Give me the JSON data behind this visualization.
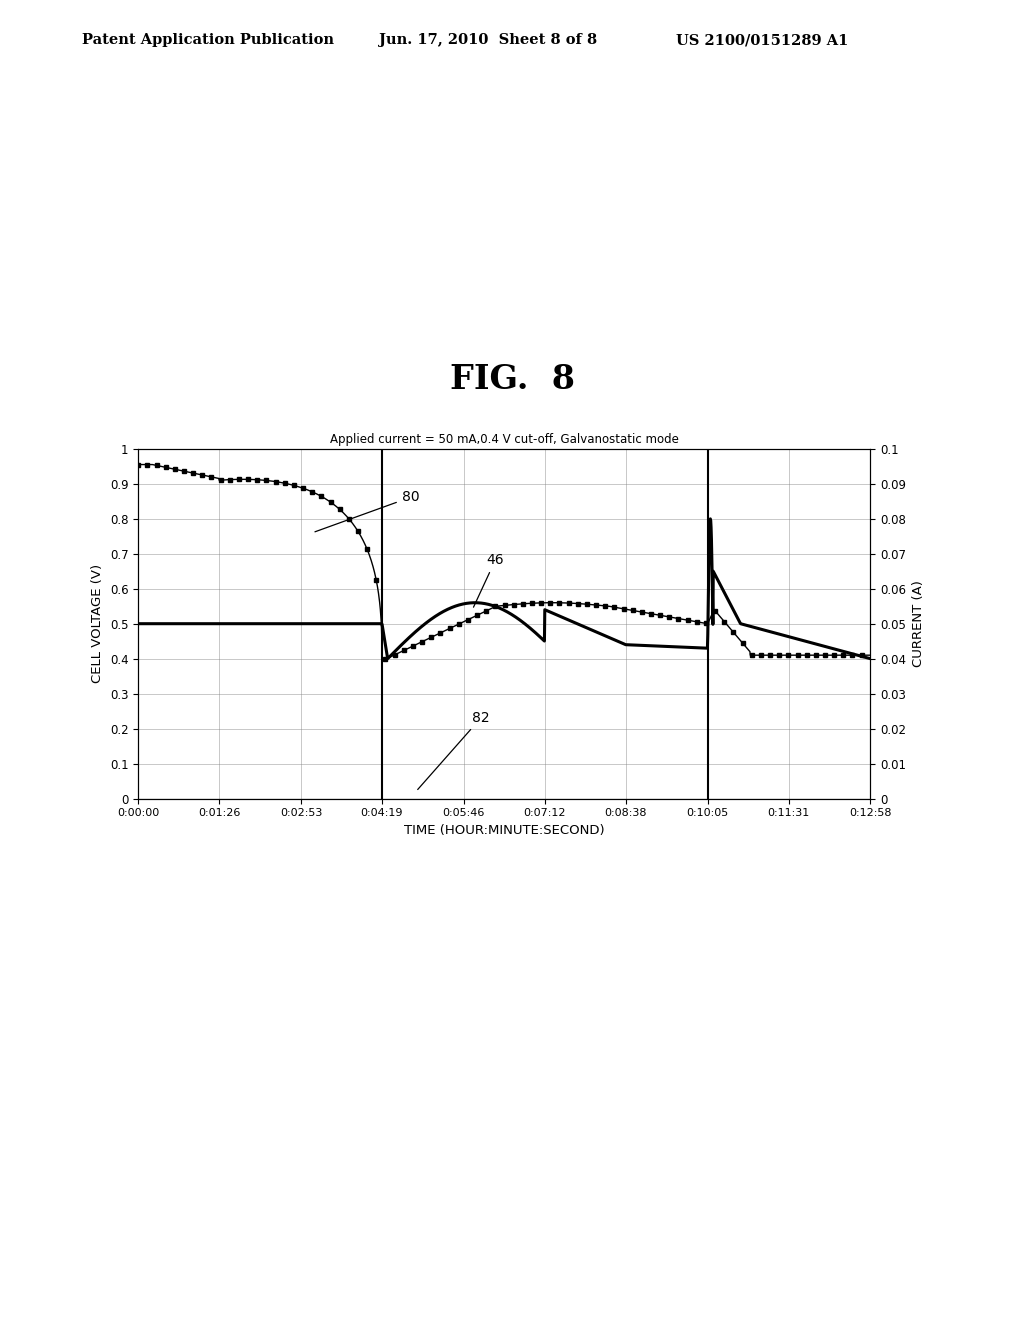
{
  "title_fig": "FIG.  8",
  "header_left": "Patent Application Publication",
  "header_mid": "Jun. 17, 2010  Sheet 8 of 8",
  "header_right": "US 2100/0151289 A1",
  "chart_title": "Applied current = 50 mA,0.4 V cut-off, Galvanostatic mode",
  "xlabel": "TIME (HOUR:MINUTE:SECOND)",
  "ylabel_left": "CELL VOLTAGE (V)",
  "ylabel_right": "CURRENT (A)",
  "xtick_labels": [
    "0:00:00",
    "0:01:26",
    "0:02:53",
    "0:04:19",
    "0:05:46",
    "0:07:12",
    "0:08:38",
    "0:10:05",
    "0:11:31",
    "0:12:58"
  ],
  "ylim_left": [
    0,
    1.0
  ],
  "ylim_right": [
    0,
    0.1
  ],
  "background_color": "#ffffff",
  "label_80": "80",
  "label_46": "46",
  "label_82": "82"
}
